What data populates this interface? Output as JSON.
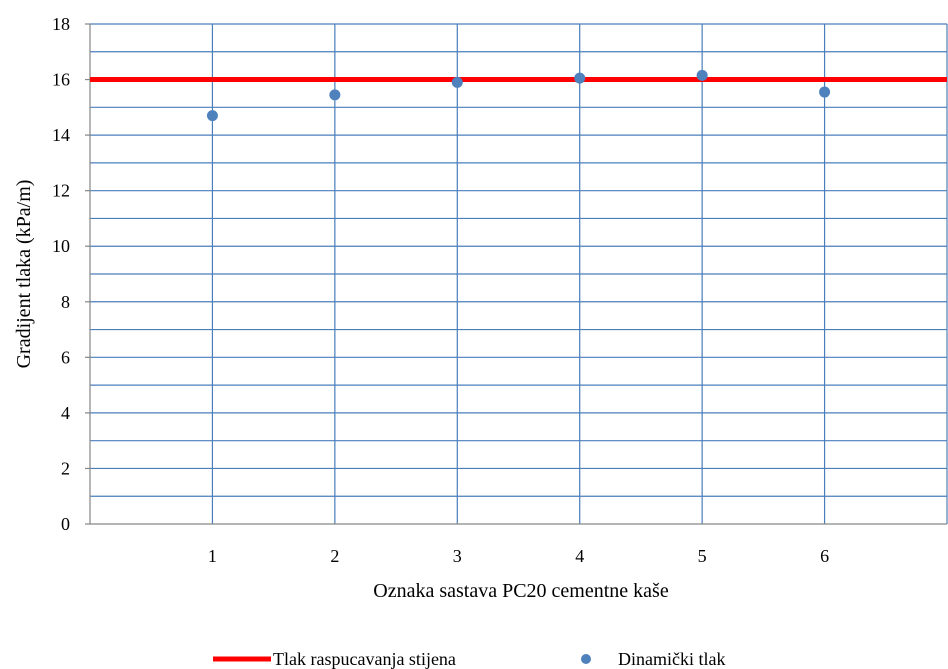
{
  "chart_data": {
    "type": "scatter",
    "title": "",
    "xlabel": "Oznaka sastava PC20 cementne kaše",
    "ylabel": "Gradijent tlaka (kPa/m)",
    "xlim": [
      0,
      7
    ],
    "ylim": [
      0,
      18
    ],
    "x_ticks": [
      "1",
      "2",
      "3",
      "4",
      "5",
      "6"
    ],
    "y_ticks": [
      "0",
      "2",
      "4",
      "6",
      "8",
      "10",
      "12",
      "14",
      "16",
      "18"
    ],
    "grid": true,
    "legend_position": "bottom",
    "series": [
      {
        "name": "Tlak raspucavanja stijena",
        "kind": "line",
        "color": "#ff0000",
        "y": 16.0
      },
      {
        "name": "Dinamički tlak",
        "kind": "scatter",
        "color": "#4f81bd",
        "x": [
          1,
          2,
          3,
          4,
          5,
          6
        ],
        "y": [
          14.7,
          15.45,
          15.9,
          16.05,
          16.15,
          15.55
        ]
      }
    ],
    "colors": {
      "grid": "#4a7ebb",
      "axis": "#868686"
    }
  }
}
